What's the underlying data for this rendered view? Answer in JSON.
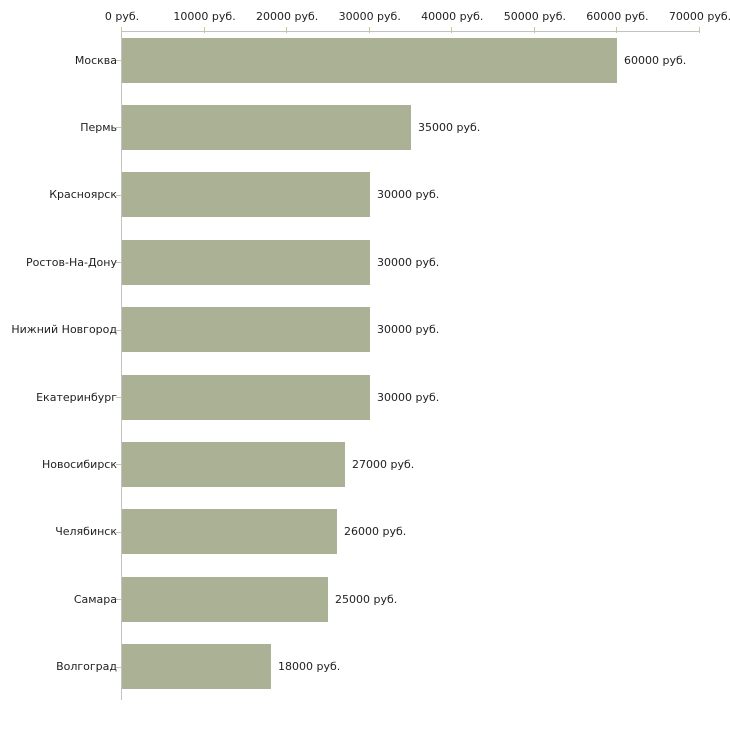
{
  "chart_data": {
    "type": "bar",
    "orientation": "horizontal",
    "title": "",
    "xlabel": "",
    "ylabel": "",
    "xlim": [
      0,
      70000
    ],
    "grid": false,
    "legend": "none",
    "unit_suffix": " руб.",
    "categories": [
      "Москва",
      "Пермь",
      "Красноярск",
      "Ростов-На-Дону",
      "Нижний Новгород",
      "Екатеринбург",
      "Новосибирск",
      "Челябинск",
      "Самара",
      "Волгоград"
    ],
    "values": [
      60000,
      35000,
      30000,
      30000,
      30000,
      30000,
      27000,
      26000,
      25000,
      18000
    ],
    "bar_labels": [
      "60000 руб.",
      "35000 руб.",
      "30000 руб.",
      "30000 руб.",
      "30000 руб.",
      "30000 руб.",
      "27000 руб.",
      "26000 руб.",
      "25000 руб.",
      "18000 руб."
    ],
    "x_tick_values": [
      0,
      10000,
      20000,
      30000,
      40000,
      50000,
      60000,
      70000
    ],
    "x_tick_labels": [
      "0 руб.",
      "10000 руб.",
      "20000 руб.",
      "30000 руб.",
      "40000 руб.",
      "50000 руб.",
      "60000 руб.",
      "70000 руб."
    ],
    "colors": {
      "bar": "#abb195",
      "axis_line": "#c3c3c3",
      "tick_mark": "#c6c79c",
      "text": "#1f1f1f",
      "background": "#ffffff"
    }
  }
}
